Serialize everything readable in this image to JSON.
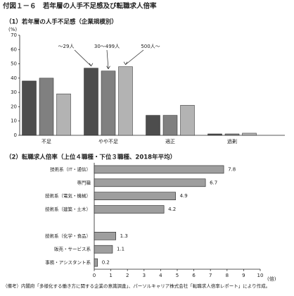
{
  "title": "付図１－６　若年層の人手不足感及び転職求人倍率",
  "note": "（備考）内閣府「多様化する働き方に関する企業の意識調査」、パーソルキャリア株式会社「転職求人倍率レポート」により作成。",
  "chart_data": [
    {
      "type": "bar",
      "title": "（1）若年層の人手不足感（企業規模別）",
      "y_unit": "(%)",
      "categories": [
        "不足",
        "やや不足",
        "適正",
        "過剰"
      ],
      "series": [
        {
          "name": "～29人",
          "color": "#4d4d4d",
          "values": [
            38,
            47,
            14,
            1
          ]
        },
        {
          "name": "30～499人",
          "color": "#808080",
          "values": [
            40,
            45,
            14,
            1
          ]
        },
        {
          "name": "500人～",
          "color": "#b3b3b3",
          "values": [
            29,
            48,
            21,
            1.5
          ]
        }
      ],
      "ylim": [
        0,
        70
      ],
      "yticks": [
        0,
        10,
        20,
        30,
        40,
        50,
        60,
        70
      ],
      "grid": false
    },
    {
      "type": "hbar",
      "title": "（2）転職求人倍率（上位４職種・下位３職種、2018年平均）",
      "x_unit": "(倍)",
      "categories": [
        "技術系（IT・通信）",
        "専門職",
        "技術系（電気・機械）",
        "技術系（建築・土木）",
        null,
        "技術系（化学・食品）",
        "販売・サービス系",
        "事務・アシスタント系"
      ],
      "values": [
        7.8,
        6.7,
        4.9,
        4.2,
        null,
        1.3,
        1.1,
        0.2
      ],
      "color": "#9e9e9e",
      "xlim": [
        0,
        10
      ],
      "xticks": [
        0,
        1,
        2,
        3,
        4,
        5,
        6,
        7,
        8,
        9,
        10
      ],
      "grid": false
    }
  ]
}
